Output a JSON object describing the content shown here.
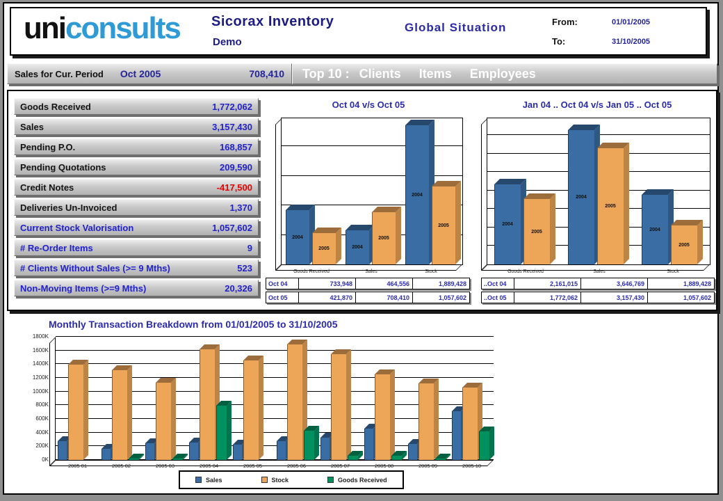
{
  "header": {
    "logo_uni": "uni",
    "logo_consults": "consults",
    "app_title": "Sicorax Inventory",
    "app_subtitle": "Demo",
    "report_title": "Global Situation",
    "from_label": "From:",
    "from_value": "01/01/2005",
    "to_label": "To:",
    "to_value": "31/10/2005"
  },
  "period_bar": {
    "label": "Sales for Cur. Period",
    "period": "Oct 2005",
    "value": "708,410",
    "top10_label": "Top 10 :",
    "top10_links": [
      "Clients",
      "Items",
      "Employees"
    ]
  },
  "metrics": {
    "items": [
      {
        "label": "Goods Received",
        "value": "1,772,062",
        "label_color": "black",
        "value_color": "blue"
      },
      {
        "label": "Sales",
        "value": "3,157,430",
        "label_color": "black",
        "value_color": "blue"
      },
      {
        "label": "Pending P.O.",
        "value": "168,857",
        "label_color": "black",
        "value_color": "blue"
      },
      {
        "label": "Pending Quotations",
        "value": "209,590",
        "label_color": "black",
        "value_color": "blue"
      },
      {
        "label": "Credit Notes",
        "value": "-417,500",
        "label_color": "black",
        "value_color": "red"
      },
      {
        "label": "Deliveries Un-Invoiced",
        "value": "1,370",
        "label_color": "black",
        "value_color": "blue"
      },
      {
        "label": "Current Stock Valorisation",
        "value": "1,057,602",
        "label_color": "blue",
        "value_color": "blue"
      },
      {
        "label": "# Re-Order Items",
        "value": "9",
        "label_color": "blue",
        "value_color": "blue"
      },
      {
        "label": "# Clients Without Sales (>= 9 Mths)",
        "value": "523",
        "label_color": "blue",
        "value_color": "blue"
      },
      {
        "label": "Non-Moving Items (>=9 Mths)",
        "value": "20,326",
        "label_color": "blue",
        "value_color": "blue"
      }
    ]
  },
  "colors": {
    "bar_blue": "#3a6da3",
    "bar_orange": "#eda558",
    "bar_green": "#00915f",
    "logo_blue": "#2e9bd6",
    "navy_text": "#2b2bad",
    "value_blue": "#2b2bc8",
    "negative_red": "#e80000"
  },
  "chart_data": [
    {
      "id": "oct-comparison",
      "type": "bar",
      "title": "Oct 04 v/s Oct 05",
      "categories": [
        "Goods Received",
        "Sales",
        "Stock"
      ],
      "series": [
        {
          "name": "2004",
          "color": "#3a6da3",
          "values": [
            733948,
            464556,
            1889428
          ]
        },
        {
          "name": "2005",
          "color": "#eda558",
          "values": [
            421870,
            708410,
            1057602
          ]
        }
      ],
      "ylim": [
        0,
        2000000
      ],
      "grid_step": 400000,
      "bar_labels": true,
      "legend_position": "none",
      "table": {
        "row_labels": [
          "Oct 04",
          "Oct 05"
        ],
        "rows": [
          [
            "733,948",
            "464,556",
            "1,889,428"
          ],
          [
            "421,870",
            "708,410",
            "1,057,602"
          ]
        ]
      }
    },
    {
      "id": "ytd-comparison",
      "type": "bar",
      "title": "Jan 04 .. Oct 04 v/s Jan 05 .. Oct 05",
      "categories": [
        "Goods Received",
        "Sales",
        "Stock"
      ],
      "series": [
        {
          "name": "2004",
          "color": "#3a6da3",
          "values": [
            2161015,
            3646769,
            1889428
          ]
        },
        {
          "name": "2005",
          "color": "#eda558",
          "values": [
            1772062,
            3157430,
            1057602
          ]
        }
      ],
      "ylim": [
        0,
        4000000
      ],
      "grid_step": 500000,
      "bar_labels": true,
      "legend_position": "none",
      "table": {
        "row_labels": [
          "..Oct 04",
          "..Oct 05"
        ],
        "rows": [
          [
            "2,161,015",
            "3,646,769",
            "1,889,428"
          ],
          [
            "1,772,062",
            "3,157,430",
            "1,057,602"
          ]
        ]
      }
    },
    {
      "id": "monthly-breakdown",
      "type": "bar",
      "title": "Monthly Transaction Breakdown from 01/01/2005 to 31/10/2005",
      "categories": [
        "2005 01",
        "2005 02",
        "2005 03",
        "2005 04",
        "2005 05",
        "2005 06",
        "2005 07",
        "2005 08",
        "2005 09",
        "2005 10"
      ],
      "series": [
        {
          "name": "Sales",
          "color": "#3a6da3",
          "values": [
            270000,
            160000,
            240000,
            250000,
            220000,
            270000,
            330000,
            460000,
            230000,
            708410
          ]
        },
        {
          "name": "Stock",
          "color": "#eda558",
          "values": [
            1390000,
            1310000,
            1130000,
            1620000,
            1450000,
            1690000,
            1550000,
            1250000,
            1120000,
            1057602
          ]
        },
        {
          "name": "Goods Received",
          "color": "#00915f",
          "values": [
            8000,
            25000,
            25000,
            790000,
            0,
            430000,
            65000,
            65000,
            25000,
            421870
          ]
        }
      ],
      "ylim": [
        0,
        1800000
      ],
      "grid_step": 200000,
      "ytick_format": "K",
      "bar_labels": false,
      "legend_position": "bottom"
    }
  ]
}
